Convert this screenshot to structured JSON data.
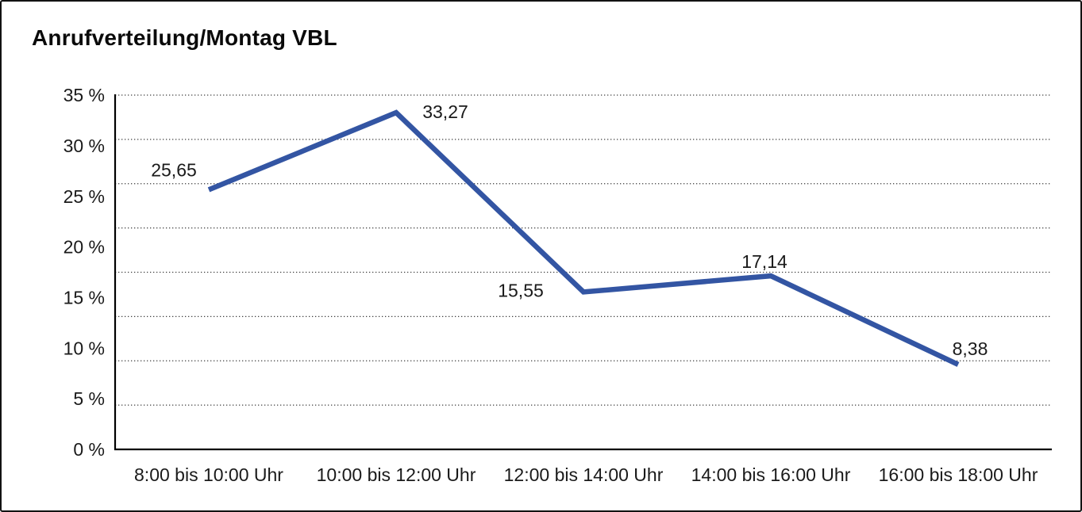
{
  "panel": {
    "background": "#ffffff",
    "border_color": "#121212"
  },
  "chart_data": {
    "type": "line",
    "title": "Anrufverteilung/Montag VBL",
    "categories": [
      "8:00 bis 10:00 Uhr",
      "10:00 bis 12:00 Uhr",
      "12:00 bis 14:00 Uhr",
      "14:00 bis 16:00 Uhr",
      "16:00 bis 18:00 Uhr"
    ],
    "values": [
      25.65,
      33.27,
      15.55,
      17.14,
      8.38
    ],
    "value_labels": [
      "25,65",
      "33,27",
      "15,55",
      "17,14",
      "8,38"
    ],
    "unit": "%",
    "xlabel": "",
    "ylabel": "",
    "ylim": [
      0,
      35
    ],
    "ytick_step": 5,
    "ytick_labels": [
      "35 %",
      "30 %",
      "25 %",
      "20 %",
      "15 %",
      "10 %",
      "5 %",
      "0 %"
    ],
    "grid": "horizontal-dotted",
    "gridline_intervals": 8,
    "legend": "none",
    "line_color": "#3355a3",
    "gridline_color": "#3d3d3d",
    "axis_color": "#000000",
    "text_color": "#1a1a1a"
  }
}
